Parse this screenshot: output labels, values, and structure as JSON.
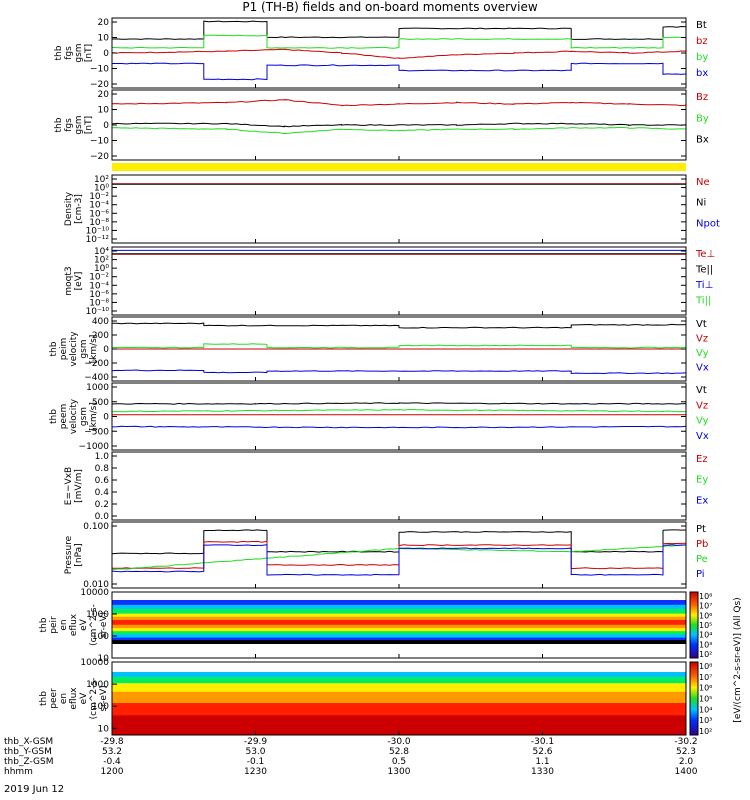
{
  "title": "P1 (TH-B) fields and on-board moments overview",
  "date": "2019 Jun 12",
  "colors": {
    "black": "#000000",
    "red": "#cc0000",
    "green": "#22dd22",
    "blue": "#0000dd",
    "yellow": "#ffee00"
  },
  "x_axis": {
    "hhmm": [
      "1200",
      "1230",
      "1300",
      "1330",
      "1400"
    ],
    "x_gsm": [
      "-29.8",
      "-29.9",
      "-30.0",
      "-30.1",
      "-30.2"
    ],
    "y_gsm": [
      "53.2",
      "53.0",
      "52.8",
      "52.6",
      "52.3"
    ],
    "z_gsm": [
      "-0.4",
      "-0.1",
      "0.5",
      "1.1",
      "2.0"
    ],
    "row_labels": [
      "thb_X-GSM",
      "thb_Y-GSM",
      "thb_Z-GSM",
      "hhmm"
    ]
  },
  "chart_data": [
    {
      "type": "line",
      "ylabel": [
        "thb",
        "fgs",
        "gsm",
        "[nT]"
      ],
      "ylim": [
        -20,
        20
      ],
      "ticks": [
        "20",
        "10",
        "0",
        "−10",
        "−20"
      ],
      "legend": [
        "Bt",
        "bz",
        "by",
        "bx"
      ],
      "legend_colors": [
        "black",
        "red",
        "green",
        "blue"
      ],
      "series": [
        {
          "name": "Bt",
          "color": "black",
          "points": [
            [
              0,
              8
            ],
            [
              0.16,
              8
            ],
            [
              0.16,
              18
            ],
            [
              0.27,
              18
            ],
            [
              0.27,
              9
            ],
            [
              0.5,
              9
            ],
            [
              0.5,
              14
            ],
            [
              0.8,
              14
            ],
            [
              0.8,
              8
            ],
            [
              0.96,
              8
            ],
            [
              0.96,
              15
            ],
            [
              1,
              15
            ]
          ]
        },
        {
          "name": "bz",
          "color": "red",
          "points": [
            [
              0,
              0
            ],
            [
              0.2,
              1
            ],
            [
              0.3,
              2
            ],
            [
              0.4,
              0
            ],
            [
              0.5,
              -3
            ],
            [
              0.6,
              -1
            ],
            [
              0.7,
              0
            ],
            [
              0.8,
              1
            ],
            [
              0.9,
              0
            ],
            [
              1,
              1
            ]
          ]
        },
        {
          "name": "by",
          "color": "green",
          "points": [
            [
              0,
              3
            ],
            [
              0.16,
              3
            ],
            [
              0.16,
              10
            ],
            [
              0.27,
              10
            ],
            [
              0.27,
              3
            ],
            [
              0.5,
              3
            ],
            [
              0.5,
              8
            ],
            [
              0.8,
              8
            ],
            [
              0.8,
              3
            ],
            [
              0.96,
              3
            ],
            [
              0.96,
              9
            ],
            [
              1,
              9
            ]
          ]
        },
        {
          "name": "bx",
          "color": "blue",
          "points": [
            [
              0,
              -6
            ],
            [
              0.16,
              -6
            ],
            [
              0.16,
              -15
            ],
            [
              0.27,
              -15
            ],
            [
              0.27,
              -7
            ],
            [
              0.5,
              -7
            ],
            [
              0.5,
              -10
            ],
            [
              0.8,
              -10
            ],
            [
              0.8,
              -6
            ],
            [
              0.96,
              -6
            ],
            [
              0.96,
              -12
            ],
            [
              1,
              -12
            ]
          ]
        }
      ]
    },
    {
      "type": "line",
      "ylabel": [
        "thb",
        "fgs",
        "gsm",
        "[nT]"
      ],
      "ylim": [
        -25,
        25
      ],
      "ticks": [
        "20",
        "10",
        "0",
        "−10",
        "−20"
      ],
      "legend": [
        "Bz",
        "By",
        "Bx"
      ],
      "legend_colors": [
        "red",
        "green",
        "black"
      ],
      "series": [
        {
          "name": "Bz",
          "color": "red",
          "points": [
            [
              0,
              15
            ],
            [
              0.2,
              16
            ],
            [
              0.3,
              18
            ],
            [
              0.4,
              14
            ],
            [
              0.5,
              15
            ],
            [
              0.6,
              16
            ],
            [
              0.7,
              15
            ],
            [
              0.8,
              16
            ],
            [
              0.9,
              15
            ],
            [
              1,
              14
            ]
          ]
        },
        {
          "name": "By",
          "color": "green",
          "points": [
            [
              0,
              -2
            ],
            [
              0.2,
              -3
            ],
            [
              0.3,
              -6
            ],
            [
              0.4,
              -3
            ],
            [
              0.5,
              -4
            ],
            [
              0.6,
              -3
            ],
            [
              0.7,
              -3
            ],
            [
              0.8,
              -2
            ],
            [
              0.9,
              -2
            ],
            [
              1,
              -3
            ]
          ]
        },
        {
          "name": "Bx",
          "color": "black",
          "points": [
            [
              0,
              1
            ],
            [
              0.2,
              1
            ],
            [
              0.3,
              -1
            ],
            [
              0.4,
              0
            ],
            [
              0.5,
              0
            ],
            [
              0.6,
              0
            ],
            [
              0.7,
              1
            ],
            [
              0.8,
              1
            ],
            [
              0.9,
              0
            ],
            [
              1,
              0
            ]
          ]
        }
      ]
    },
    {
      "type": "line",
      "ylabel": [
        "Density",
        "[cm-3]"
      ],
      "ylim": [
        -12,
        2
      ],
      "ticks": [
        "10²",
        "10⁰",
        "10⁻²",
        "10⁻⁴",
        "10⁻⁶",
        "10⁻⁸",
        "10⁻¹⁰",
        "10⁻¹²"
      ],
      "legend": [
        "Ne",
        "Ni",
        "Npot"
      ],
      "legend_colors": [
        "red",
        "black",
        "blue"
      ],
      "series": [
        {
          "name": "Ne",
          "color": "red",
          "points": [
            [
              0,
              0.2
            ],
            [
              1,
              0.2
            ]
          ]
        },
        {
          "name": "Ni",
          "color": "black",
          "points": [
            [
              0,
              0.1
            ],
            [
              1,
              0.1
            ]
          ]
        }
      ]
    },
    {
      "type": "line",
      "ylabel": [
        "moqt3",
        "[eV]"
      ],
      "ylim": [
        -10,
        4
      ],
      "ticks": [
        "10⁴",
        "10²",
        "10⁰",
        "10⁻²",
        "10⁻⁴",
        "10⁻⁶",
        "10⁻⁸",
        "10⁻¹⁰"
      ],
      "legend": [
        "Te⊥",
        "Te||",
        "Ti⊥",
        "Ti||"
      ],
      "legend_colors": [
        "red",
        "black",
        "blue",
        "green"
      ],
      "series": [
        {
          "name": "Ti⊥",
          "color": "blue",
          "points": [
            [
              0,
              3.3
            ],
            [
              1,
              3.3
            ]
          ]
        },
        {
          "name": "Te⊥",
          "color": "red",
          "points": [
            [
              0,
              2.5
            ],
            [
              1,
              2.5
            ]
          ]
        },
        {
          "name": "Te||",
          "color": "black",
          "points": [
            [
              0,
              2.6
            ],
            [
              1,
              2.6
            ]
          ]
        }
      ]
    },
    {
      "type": "line",
      "ylabel": [
        "thb",
        "peim",
        "velocity",
        "gsm",
        "[km/s]"
      ],
      "ylim": [
        -450,
        450
      ],
      "ticks": [
        "400",
        "200",
        "0",
        "−200",
        "−400"
      ],
      "legend": [
        "Vt",
        "Vz",
        "Vy",
        "Vx"
      ],
      "legend_colors": [
        "black",
        "red",
        "green",
        "blue"
      ],
      "series": [
        {
          "name": "Vt",
          "color": "black",
          "points": [
            [
              0,
              360
            ],
            [
              0.16,
              360
            ],
            [
              0.16,
              330
            ],
            [
              0.5,
              330
            ],
            [
              0.5,
              300
            ],
            [
              0.8,
              300
            ],
            [
              0.8,
              340
            ],
            [
              1,
              340
            ]
          ]
        },
        {
          "name": "Vz",
          "color": "red",
          "points": [
            [
              0,
              0
            ],
            [
              1,
              0
            ]
          ]
        },
        {
          "name": "Vy",
          "color": "green",
          "points": [
            [
              0,
              20
            ],
            [
              0.16,
              20
            ],
            [
              0.16,
              70
            ],
            [
              0.27,
              70
            ],
            [
              0.27,
              20
            ],
            [
              0.5,
              20
            ],
            [
              0.5,
              50
            ],
            [
              0.8,
              50
            ],
            [
              0.8,
              20
            ],
            [
              1,
              20
            ]
          ]
        },
        {
          "name": "Vx",
          "color": "blue",
          "points": [
            [
              0,
              -300
            ],
            [
              0.16,
              -300
            ],
            [
              0.16,
              -330
            ],
            [
              0.27,
              -330
            ],
            [
              0.27,
              -310
            ],
            [
              0.8,
              -310
            ],
            [
              0.8,
              -340
            ],
            [
              1,
              -340
            ]
          ]
        }
      ]
    },
    {
      "type": "line",
      "ylabel": [
        "thb",
        "peem",
        "velocity",
        "gsm",
        "[km/s]"
      ],
      "ylim": [
        -1000,
        1000
      ],
      "ticks": [
        "1000",
        "500",
        "0",
        "−500",
        "−1000"
      ],
      "legend": [
        "Vt",
        "Vz",
        "Vy",
        "Vx"
      ],
      "legend_colors": [
        "black",
        "red",
        "green",
        "blue"
      ],
      "series": [
        {
          "name": "Vt",
          "color": "black",
          "points": [
            [
              0,
              380
            ],
            [
              0.25,
              380
            ],
            [
              0.5,
              400
            ],
            [
              0.8,
              380
            ],
            [
              1,
              380
            ]
          ]
        },
        {
          "name": "Vz",
          "color": "red",
          "points": [
            [
              0,
              50
            ],
            [
              1,
              50
            ]
          ]
        },
        {
          "name": "Vy",
          "color": "green",
          "points": [
            [
              0,
              150
            ],
            [
              0.5,
              200
            ],
            [
              1,
              150
            ]
          ]
        },
        {
          "name": "Vx",
          "color": "blue",
          "points": [
            [
              0,
              -300
            ],
            [
              0.5,
              -330
            ],
            [
              1,
              -300
            ]
          ]
        }
      ]
    },
    {
      "type": "line",
      "ylabel": [
        "E=−VxB",
        "[mV/m]"
      ],
      "ylim": [
        0,
        1
      ],
      "ticks": [
        "1.0",
        "0.8",
        "0.6",
        "0.4",
        "0.2",
        "0.0"
      ],
      "legend": [
        "Ez",
        "Ey",
        "Ex"
      ],
      "legend_colors": [
        "red",
        "green",
        "blue"
      ],
      "series": []
    },
    {
      "type": "line",
      "ylabel": [
        "Pressure",
        "[nPa]"
      ],
      "ylim": [
        -2.3,
        -0.3
      ],
      "ticks": [
        "0.100",
        "0.010"
      ],
      "legend": [
        "Pt",
        "Pb",
        "Pe",
        "Pi"
      ],
      "legend_colors": [
        "black",
        "red",
        "green",
        "blue"
      ],
      "series": [
        {
          "name": "Pt",
          "color": "black",
          "points": [
            [
              0,
              -1.25
            ],
            [
              0.16,
              -1.25
            ],
            [
              0.16,
              -0.55
            ],
            [
              0.27,
              -0.55
            ],
            [
              0.27,
              -1.2
            ],
            [
              0.5,
              -1.2
            ],
            [
              0.5,
              -0.6
            ],
            [
              0.8,
              -0.6
            ],
            [
              0.8,
              -1.2
            ],
            [
              0.96,
              -1.2
            ],
            [
              0.96,
              -0.55
            ],
            [
              1,
              -0.55
            ]
          ]
        },
        {
          "name": "Pb",
          "color": "red",
          "points": [
            [
              0,
              -1.7
            ],
            [
              0.16,
              -1.7
            ],
            [
              0.16,
              -0.9
            ],
            [
              0.27,
              -0.9
            ],
            [
              0.27,
              -1.6
            ],
            [
              0.5,
              -1.6
            ],
            [
              0.5,
              -1.0
            ],
            [
              0.8,
              -1.0
            ],
            [
              0.8,
              -1.7
            ],
            [
              0.96,
              -1.7
            ],
            [
              0.96,
              -0.95
            ],
            [
              1,
              -0.95
            ]
          ]
        },
        {
          "name": "Pe",
          "color": "green",
          "points": [
            [
              0,
              -1.75
            ],
            [
              0.5,
              -1.1
            ],
            [
              0.8,
              -1.2
            ],
            [
              1,
              -1.0
            ]
          ]
        },
        {
          "name": "Pi",
          "color": "blue",
          "points": [
            [
              0,
              -1.8
            ],
            [
              0.16,
              -1.8
            ],
            [
              0.16,
              -1.0
            ],
            [
              0.27,
              -1.0
            ],
            [
              0.27,
              -1.9
            ],
            [
              0.5,
              -1.9
            ],
            [
              0.5,
              -1.1
            ],
            [
              0.8,
              -1.1
            ],
            [
              0.8,
              -1.9
            ],
            [
              0.96,
              -1.9
            ],
            [
              0.96,
              -1.0
            ],
            [
              1,
              -1.0
            ]
          ]
        }
      ]
    },
    {
      "type": "heatmap",
      "ylabel": [
        "thb",
        "peir",
        "en",
        "eflux",
        "eV",
        "(cm^2-s-",
        "sr-eV)"
      ],
      "ylim": [
        1,
        4
      ],
      "ticks": [
        "10000",
        "1000",
        "100",
        "10"
      ],
      "colorbar": {
        "labels": [
          "10⁸",
          "10⁷",
          "10⁶",
          "10⁵",
          "10⁴",
          "10³",
          "10²"
        ]
      }
    },
    {
      "type": "heatmap",
      "ylabel": [
        "thb",
        "peer",
        "en",
        "eflux",
        "eV",
        "(cm^2-s-",
        "sr-eV)"
      ],
      "ylim": [
        0.7,
        4
      ],
      "ticks": [
        "10000",
        "1000",
        "100",
        "10"
      ],
      "colorbar": {
        "labels": [
          "10⁸",
          "10⁷",
          "10⁶",
          "10⁵",
          "10⁴",
          "10³",
          "10²"
        ]
      }
    }
  ],
  "colorbar_title": "[eV/(cm^2-s-sr-eV)] (All Qs)"
}
